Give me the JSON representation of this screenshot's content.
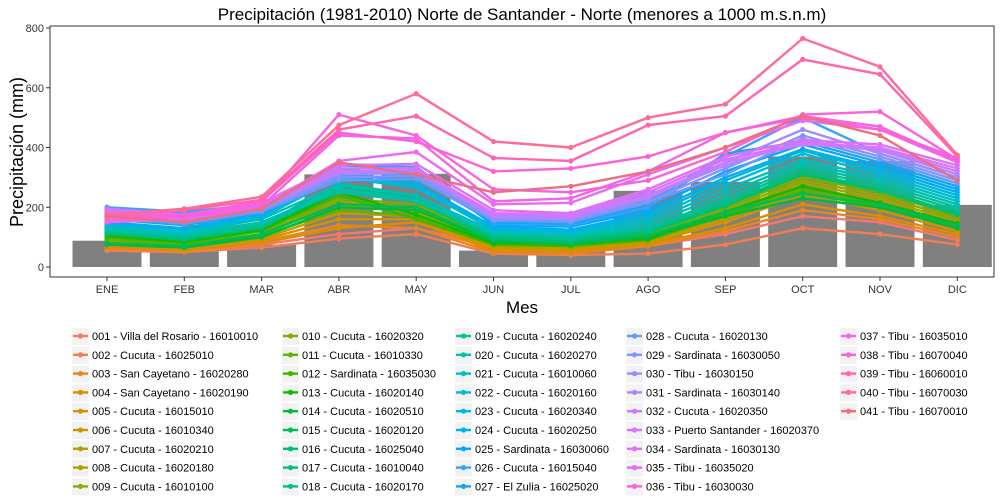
{
  "chart_data": {
    "type": "line",
    "title": "Precipitación (1981-2010) Norte de Santander - Norte (menores a 1000 m.s.n.m)",
    "xlabel": "Mes",
    "ylabel": "Precipitación (mm)",
    "ylim": [
      0,
      800
    ],
    "yticks": [
      0,
      200,
      400,
      600,
      800
    ],
    "categories": [
      "ENE",
      "FEB",
      "MAR",
      "ABR",
      "MAY",
      "JUN",
      "JUL",
      "AGO",
      "SEP",
      "OCT",
      "NOV",
      "DIC"
    ],
    "bars": [
      88,
      68,
      75,
      310,
      312,
      55,
      58,
      255,
      285,
      370,
      355,
      208
    ],
    "legend_placement": "bottom",
    "grid": false,
    "series": [
      {
        "name": "001 - Villa del Rosario - 16010010",
        "color": "#F8766D",
        "values": [
          60,
          55,
          75,
          110,
          130,
          65,
          55,
          70,
          110,
          170,
          150,
          90
        ]
      },
      {
        "name": "002 - Cucuta - 16025010",
        "color": "#F27D52",
        "values": [
          55,
          50,
          65,
          95,
          110,
          45,
          40,
          45,
          75,
          130,
          110,
          75
        ]
      },
      {
        "name": "003 - San Cayetano - 16020280",
        "color": "#E88526",
        "values": [
          70,
          60,
          85,
          140,
          130,
          50,
          45,
          70,
          120,
          190,
          160,
          100
        ]
      },
      {
        "name": "004 - San Cayetano - 16020190",
        "color": "#DE8C00",
        "values": [
          65,
          55,
          80,
          130,
          150,
          55,
          50,
          75,
          130,
          210,
          170,
          110
        ]
      },
      {
        "name": "005 - Cucuta - 16015010",
        "color": "#D39200",
        "values": [
          75,
          60,
          90,
          160,
          160,
          60,
          55,
          80,
          150,
          240,
          190,
          120
        ]
      },
      {
        "name": "006 - Cucuta - 16010340",
        "color": "#C79800",
        "values": [
          80,
          65,
          95,
          180,
          170,
          65,
          60,
          85,
          160,
          250,
          200,
          130
        ]
      },
      {
        "name": "007 - Cucuta - 16020210",
        "color": "#B79F00",
        "values": [
          85,
          70,
          100,
          200,
          190,
          70,
          65,
          90,
          170,
          270,
          220,
          140
        ]
      },
      {
        "name": "008 - Cucuta - 16020180",
        "color": "#A3A500",
        "values": [
          175,
          140,
          120,
          210,
          180,
          80,
          70,
          100,
          180,
          280,
          230,
          150
        ]
      },
      {
        "name": "009 - Cucuta - 16010100",
        "color": "#8EAB00",
        "values": [
          185,
          150,
          130,
          220,
          200,
          85,
          75,
          105,
          190,
          290,
          240,
          160
        ]
      },
      {
        "name": "010 - Cucuta - 16020320",
        "color": "#7CAE00",
        "values": [
          90,
          75,
          110,
          230,
          210,
          90,
          80,
          110,
          200,
          300,
          250,
          170
        ]
      },
      {
        "name": "011 - Cucuta - 16010330",
        "color": "#62B200",
        "values": [
          95,
          70,
          105,
          190,
          170,
          80,
          75,
          95,
          180,
          260,
          210,
          140
        ]
      },
      {
        "name": "012 - Sardinata - 16035030",
        "color": "#3DB600",
        "values": [
          100,
          80,
          120,
          240,
          160,
          75,
          70,
          90,
          175,
          250,
          200,
          135
        ]
      },
      {
        "name": "013 - Cucuta - 16020140",
        "color": "#12B800",
        "values": [
          105,
          85,
          125,
          250,
          175,
          80,
          80,
          95,
          185,
          270,
          215,
          145
        ]
      },
      {
        "name": "014 - Cucuta - 16020510",
        "color": "#00BA38",
        "values": [
          75,
          65,
          100,
          200,
          190,
          85,
          75,
          100,
          170,
          230,
          200,
          130
        ]
      },
      {
        "name": "015 - Cucuta - 16020120",
        "color": "#00BC56",
        "values": [
          80,
          70,
          110,
          210,
          200,
          90,
          80,
          105,
          185,
          245,
          210,
          140
        ]
      },
      {
        "name": "016 - Cucuta - 16025040",
        "color": "#00BE6C",
        "values": [
          110,
          90,
          130,
          260,
          220,
          95,
          85,
          115,
          205,
          310,
          255,
          175
        ]
      },
      {
        "name": "017 - Cucuta - 16010040",
        "color": "#00BF7D",
        "values": [
          115,
          95,
          135,
          270,
          230,
          100,
          90,
          120,
          210,
          320,
          260,
          180
        ]
      },
      {
        "name": "018 - Cucuta - 16020170",
        "color": "#00C08E",
        "values": [
          120,
          100,
          140,
          280,
          240,
          105,
          95,
          125,
          220,
          330,
          270,
          190
        ]
      },
      {
        "name": "019 - Cucuta - 16020240",
        "color": "#00C19F",
        "values": [
          125,
          105,
          145,
          250,
          220,
          110,
          100,
          130,
          230,
          340,
          280,
          200
        ]
      },
      {
        "name": "020 - Cucuta - 16020270",
        "color": "#00BFB0",
        "values": [
          130,
          110,
          150,
          260,
          225,
          115,
          105,
          140,
          245,
          350,
          290,
          210
        ]
      },
      {
        "name": "021 - Cucuta - 16010060",
        "color": "#00BDC1",
        "values": [
          135,
          115,
          160,
          275,
          240,
          120,
          110,
          150,
          260,
          360,
          300,
          220
        ]
      },
      {
        "name": "022 - Cucuta - 16020160",
        "color": "#00BAD0",
        "values": [
          140,
          120,
          165,
          300,
          265,
          125,
          115,
          160,
          275,
          380,
          310,
          230
        ]
      },
      {
        "name": "023 - Cucuta - 16020340",
        "color": "#00B6DE",
        "values": [
          145,
          125,
          170,
          310,
          270,
          130,
          120,
          170,
          290,
          390,
          320,
          240
        ]
      },
      {
        "name": "024 - Cucuta - 16020250",
        "color": "#00B0EB",
        "values": [
          150,
          130,
          175,
          320,
          280,
          135,
          125,
          180,
          300,
          395,
          330,
          250
        ]
      },
      {
        "name": "025 - Sardinata - 16030060",
        "color": "#00A9FF",
        "values": [
          195,
          180,
          200,
          340,
          330,
          140,
          135,
          190,
          320,
          410,
          340,
          260
        ]
      },
      {
        "name": "026 - Cucuta - 16015040",
        "color": "#35A2FF",
        "values": [
          200,
          185,
          210,
          345,
          335,
          145,
          140,
          200,
          370,
          500,
          380,
          300
        ]
      },
      {
        "name": "027 - El Zulia - 16025020",
        "color": "#1FA3E8",
        "values": [
          160,
          140,
          180,
          330,
          300,
          150,
          145,
          210,
          380,
          420,
          350,
          270
        ]
      },
      {
        "name": "028 - Cucuta - 16020130",
        "color": "#619CFF",
        "values": [
          165,
          145,
          185,
          290,
          295,
          155,
          150,
          215,
          310,
          430,
          360,
          280
        ]
      },
      {
        "name": "029 - Sardinata - 16030050",
        "color": "#8494FF",
        "values": [
          170,
          150,
          190,
          300,
          305,
          160,
          155,
          220,
          330,
          440,
          370,
          290
        ]
      },
      {
        "name": "030 - Tibu - 16030150",
        "color": "#9F8CFF",
        "values": [
          175,
          155,
          195,
          310,
          315,
          165,
          160,
          230,
          350,
          460,
          380,
          300
        ]
      },
      {
        "name": "031 - Sardinata - 16030140",
        "color": "#B484FF",
        "values": [
          180,
          160,
          200,
          315,
          320,
          170,
          165,
          235,
          340,
          420,
          390,
          310
        ]
      },
      {
        "name": "032 - Cucuta - 16020350",
        "color": "#C77CFF",
        "values": [
          185,
          165,
          205,
          320,
          325,
          175,
          170,
          240,
          350,
          410,
          395,
          320
        ]
      },
      {
        "name": "033 - Puerto Santander - 16020370",
        "color": "#D575FE",
        "values": [
          190,
          170,
          210,
          330,
          330,
          180,
          175,
          250,
          360,
          415,
          400,
          330
        ]
      },
      {
        "name": "034 - Sardinata - 16030130",
        "color": "#E06FF8",
        "values": [
          195,
          175,
          215,
          340,
          345,
          190,
          180,
          260,
          370,
          425,
          410,
          340
        ]
      },
      {
        "name": "035 - Tibu - 16035020",
        "color": "#EA6AF1",
        "values": [
          150,
          160,
          200,
          355,
          385,
          210,
          215,
          310,
          400,
          490,
          460,
          350
        ]
      },
      {
        "name": "036 - Tibu - 16030030",
        "color": "#F264E8",
        "values": [
          155,
          165,
          205,
          440,
          430,
          220,
          230,
          320,
          450,
          505,
          470,
          355
        ]
      },
      {
        "name": "037 - Tibu - 16035010",
        "color": "#F863DF",
        "values": [
          160,
          170,
          215,
          510,
          440,
          260,
          250,
          290,
          385,
          510,
          520,
          360
        ]
      },
      {
        "name": "038 - Tibu - 16070040",
        "color": "#FC61D5",
        "values": [
          165,
          175,
          220,
          450,
          420,
          320,
          330,
          370,
          450,
          500,
          460,
          365
        ]
      },
      {
        "name": "039 - Tibu - 16060010",
        "color": "#FF64B0",
        "values": [
          170,
          190,
          225,
          460,
          505,
          365,
          355,
          475,
          505,
          695,
          645,
          370
        ]
      },
      {
        "name": "040 - Tibu - 16070030",
        "color": "#FF6A98",
        "values": [
          175,
          195,
          235,
          475,
          580,
          420,
          400,
          500,
          545,
          765,
          670,
          375
        ]
      },
      {
        "name": "041 - Tibu - 16070010",
        "color": "#EE6D7E",
        "values": [
          170,
          150,
          195,
          350,
          310,
          250,
          270,
          320,
          400,
          505,
          440,
          290
        ]
      }
    ]
  }
}
